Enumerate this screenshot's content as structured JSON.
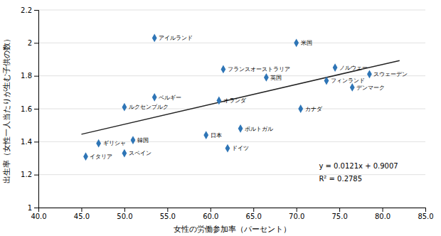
{
  "chart_data": {
    "type": "scatter",
    "x_label": "女性の労働参加率（パーセント）",
    "y_label": "出生率（女性一人当たりが生む子供の数）",
    "xlim": [
      40.0,
      85.0
    ],
    "ylim": [
      1.0,
      2.2
    ],
    "xticks": [
      {
        "value": 40,
        "label": "40.0"
      },
      {
        "value": 45,
        "label": "45.0"
      },
      {
        "value": 50,
        "label": "50.0"
      },
      {
        "value": 55,
        "label": "55.0"
      },
      {
        "value": 60,
        "label": "60.0"
      },
      {
        "value": 65,
        "label": "65.0"
      },
      {
        "value": 70,
        "label": "70.0"
      },
      {
        "value": 75,
        "label": "75.0"
      },
      {
        "value": 80,
        "label": "80.0"
      },
      {
        "value": 85,
        "label": "85.0"
      }
    ],
    "yticks": [
      1,
      1.2,
      1.4,
      1.6,
      1.8,
      2,
      2.2
    ],
    "grid": "y",
    "annotations": [
      "y = 0.0121x + 0.9007",
      "R² = 0.2785"
    ],
    "series": [
      {
        "type": "scatter",
        "color": "#2E75B6",
        "marker": "diamond",
        "labels": [
          "アイルランド",
          "米国",
          "フランスオーストラリア",
          "英国",
          "ノルウェー",
          "スウェーデン",
          "フィンランド",
          "デンマーク",
          "ベルギー",
          "ルクセンブルク",
          "オランダ",
          "カナダ",
          "ポルトガル",
          "日本",
          "韓国",
          "ギリシャ",
          "ドイツ",
          "イタリア",
          "スペイン"
        ],
        "x": [
          53.5,
          70.0,
          61.5,
          66.5,
          74.5,
          78.5,
          73.5,
          76.5,
          53.5,
          50.0,
          61.0,
          70.5,
          63.5,
          59.5,
          51.0,
          47.0,
          62.0,
          45.5,
          50.0
        ],
        "values": [
          2.03,
          2.0,
          1.84,
          1.79,
          1.85,
          1.81,
          1.77,
          1.73,
          1.67,
          1.61,
          1.65,
          1.6,
          1.48,
          1.44,
          1.41,
          1.39,
          1.36,
          1.31,
          1.33
        ]
      },
      {
        "type": "line",
        "color": "#222222",
        "line_style": "solid",
        "x": [
          45.0,
          82.0
        ],
        "values": [
          1.4452,
          1.8929
        ]
      }
    ]
  }
}
